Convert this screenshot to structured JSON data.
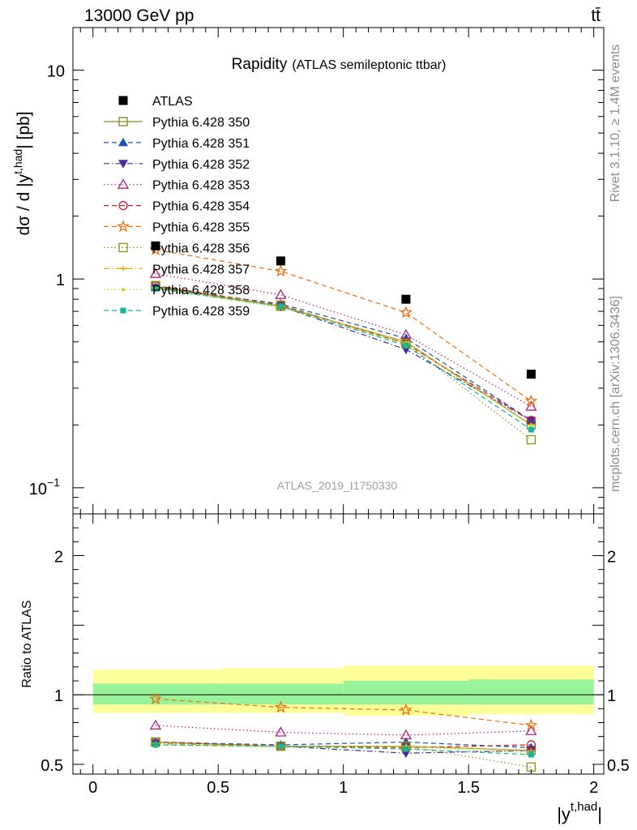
{
  "header": {
    "beam": "13000 GeV pp",
    "process": "tt̄",
    "side_rivet": "Rivet 3.1.10, ≥ 1.4M events",
    "side_mcplots": "mcplots.cern.ch [arXiv:1306.3436]",
    "analysis": "ATLAS_2019_I1750330"
  },
  "chart_data": [
    {
      "type": "line",
      "panel": "main",
      "title": "Rapidity",
      "subtitle": "(ATLAS semileptonic ttbar)",
      "ylabel": "dσ / d |y^{t,had}| [pb]",
      "ylabel_main": "dσ / d |y",
      "ylabel_sup": "t,had",
      "ylabel_tail": "| [pb]",
      "yscale": "log",
      "ylim": [
        0.075,
        16
      ],
      "xlim": [
        -0.08,
        2.04
      ],
      "y_ticks": [
        {
          "value": 0.1,
          "base": "10",
          "exp": "−1"
        },
        {
          "value": 1,
          "label": "1"
        },
        {
          "value": 10,
          "label": "10"
        }
      ],
      "x": [
        0.25,
        0.75,
        1.25,
        1.75
      ],
      "data": {
        "name": "ATLAS",
        "values": [
          1.44,
          1.22,
          0.8,
          0.35
        ]
      },
      "series": [
        {
          "name": "Pythia 6.428 350",
          "color": "#8c8c2a",
          "marker": "square-open",
          "dash": "solid",
          "values": [
            0.92,
            0.74,
            0.5,
            0.2
          ]
        },
        {
          "name": "Pythia 6.428 351",
          "color": "#1f4fb4",
          "marker": "triangle-up",
          "dash": "dashed",
          "values": [
            0.91,
            0.76,
            0.52,
            0.21
          ]
        },
        {
          "name": "Pythia 6.428 352",
          "color": "#4b2a9c",
          "marker": "triangle-down",
          "dash": "dashdot",
          "values": [
            0.91,
            0.74,
            0.46,
            0.21
          ]
        },
        {
          "name": "Pythia 6.428 353",
          "color": "#b0207e",
          "marker": "triangle-open",
          "dash": "dotted",
          "values": [
            1.06,
            0.84,
            0.54,
            0.245
          ]
        },
        {
          "name": "Pythia 6.428 354",
          "color": "#d01c2a",
          "marker": "circle-open",
          "dash": "dashed",
          "values": [
            0.93,
            0.75,
            0.49,
            0.21
          ]
        },
        {
          "name": "Pythia 6.428 355",
          "color": "#ee6f10",
          "marker": "star-open",
          "dash": "dashed",
          "values": [
            1.38,
            1.09,
            0.69,
            0.26
          ]
        },
        {
          "name": "Pythia 6.428 356",
          "color": "#8a9a1a",
          "marker": "square-open",
          "dash": "dotted",
          "values": [
            0.93,
            0.75,
            0.49,
            0.17
          ]
        },
        {
          "name": "Pythia 6.428 357",
          "color": "#d4b400",
          "marker": "dash-tick",
          "dash": "dashdot",
          "values": [
            0.91,
            0.74,
            0.5,
            0.2
          ]
        },
        {
          "name": "Pythia 6.428 358",
          "color": "#b8d81a",
          "marker": "dot",
          "dash": "dotted",
          "values": [
            0.9,
            0.73,
            0.49,
            0.2
          ]
        },
        {
          "name": "Pythia 6.428 359",
          "color": "#14b898",
          "marker": "square-filled",
          "dash": "dashed",
          "values": [
            0.9,
            0.74,
            0.48,
            0.19
          ]
        }
      ]
    },
    {
      "type": "line",
      "panel": "ratio",
      "ylabel": "Ratio to ATLAS",
      "xlabel": "|y^{t,had}|",
      "xlabel_main": "|y",
      "xlabel_sup": "t,had",
      "xlabel_tail": "|",
      "ylim": [
        0.43,
        2.3
      ],
      "x_ticks": [
        {
          "value": 0,
          "label": "0"
        },
        {
          "value": 0.5,
          "label": "0.5"
        },
        {
          "value": 1,
          "label": "1"
        },
        {
          "value": 1.5,
          "label": "1.5"
        },
        {
          "value": 2,
          "label": "2"
        }
      ],
      "y_ticks": [
        {
          "value": 0.5,
          "label": "0.5"
        },
        {
          "value": 1,
          "label": "1"
        },
        {
          "value": 2,
          "label": "2"
        }
      ],
      "bins": [
        [
          0,
          0.5
        ],
        [
          0.5,
          1.0
        ],
        [
          1.0,
          1.5
        ],
        [
          1.5,
          2.0
        ]
      ],
      "band_total": [
        [
          0.87,
          1.18
        ],
        [
          0.87,
          1.19
        ],
        [
          0.85,
          1.21
        ],
        [
          0.86,
          1.21
        ]
      ],
      "band_stat": [
        [
          0.93,
          1.08
        ],
        [
          0.93,
          1.08
        ],
        [
          0.93,
          1.1
        ],
        [
          0.93,
          1.11
        ]
      ],
      "x": [
        0.25,
        0.75,
        1.25,
        1.75
      ],
      "series_ratios": [
        [
          0.66,
          0.63,
          0.63,
          0.6
        ],
        [
          0.66,
          0.64,
          0.66,
          0.62
        ],
        [
          0.65,
          0.63,
          0.58,
          0.6
        ],
        [
          0.78,
          0.73,
          0.71,
          0.74
        ],
        [
          0.66,
          0.63,
          0.62,
          0.64
        ],
        [
          0.97,
          0.91,
          0.89,
          0.78
        ],
        [
          0.66,
          0.63,
          0.63,
          0.48
        ],
        [
          0.65,
          0.63,
          0.63,
          0.6
        ],
        [
          0.64,
          0.62,
          0.63,
          0.58
        ],
        [
          0.64,
          0.63,
          0.61,
          0.57
        ]
      ]
    }
  ]
}
